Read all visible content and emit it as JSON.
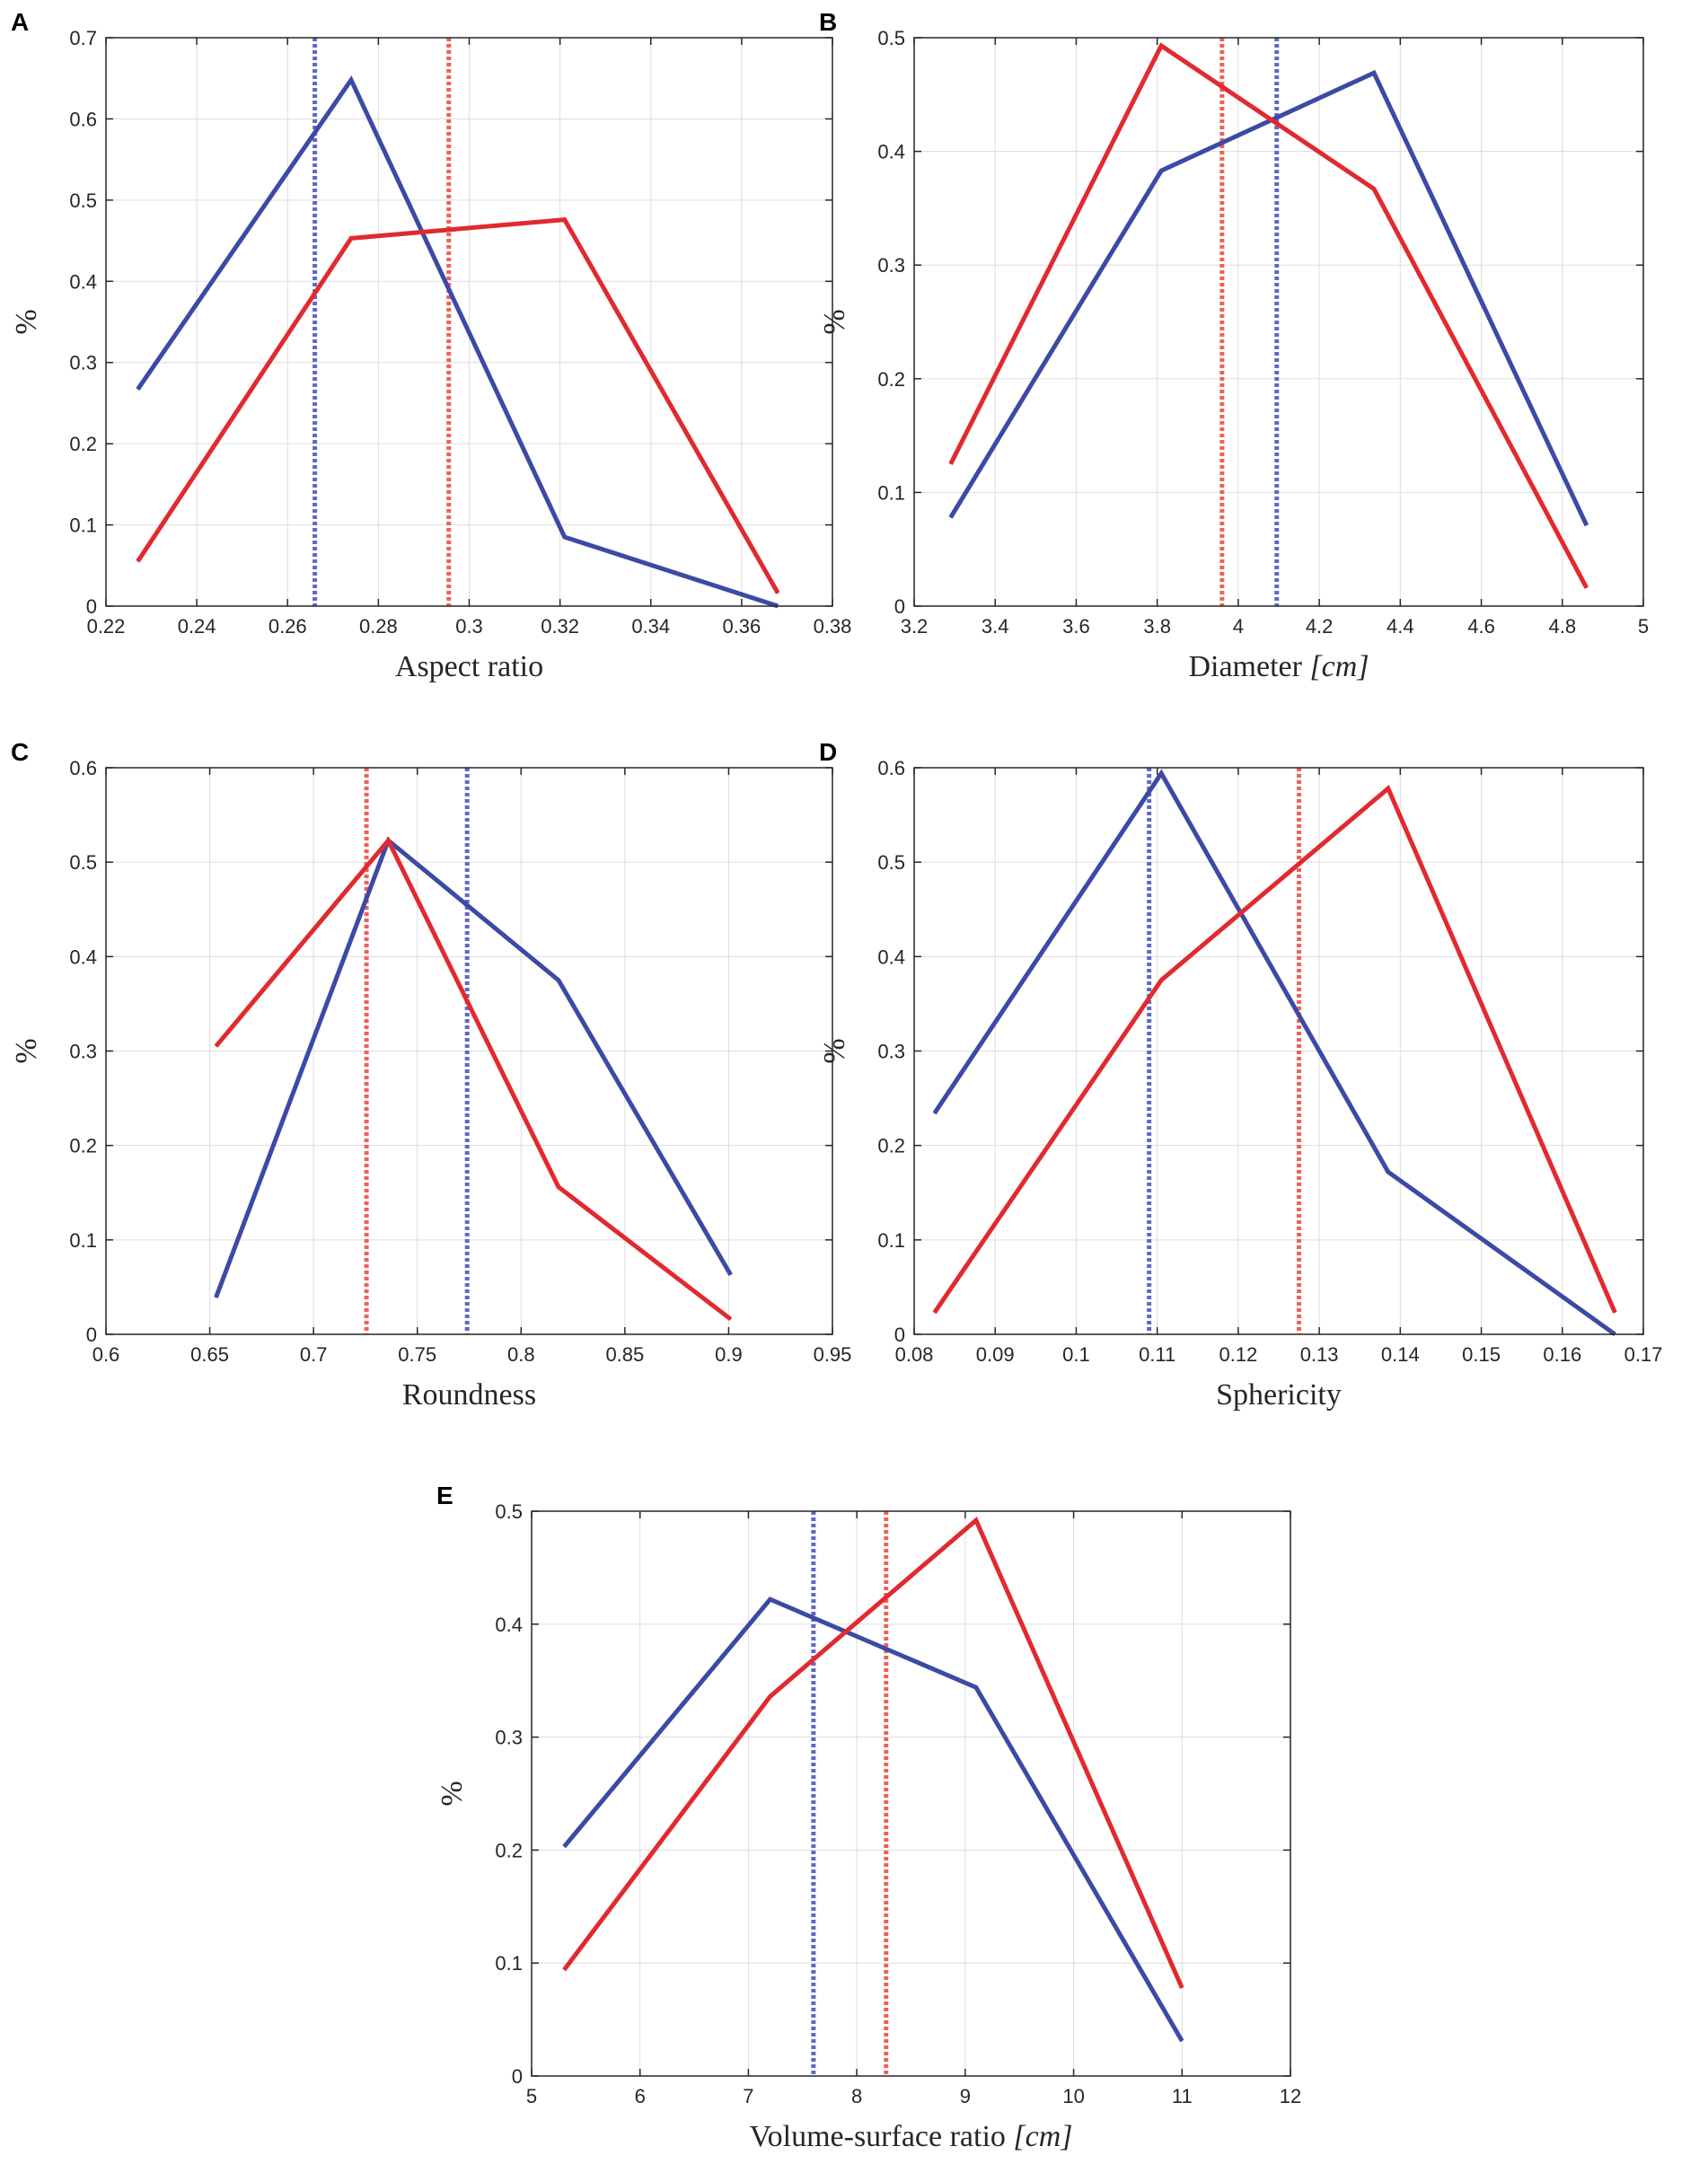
{
  "colors": {
    "blue": "#3c4aa5",
    "red": "#e12a2f",
    "blue_dotted": "#6068c8",
    "red_dotted": "#f0605a"
  },
  "chart_data": [
    {
      "id": "A",
      "panel_label": "A",
      "type": "line",
      "xlabel": "Aspect ratio",
      "ylabel": "%",
      "xlim": [
        0.22,
        0.38
      ],
      "ylim": [
        0,
        0.7
      ],
      "xticks": [
        0.22,
        0.24,
        0.26,
        0.28,
        0.3,
        0.32,
        0.34,
        0.36,
        0.38
      ],
      "xtick_labels": [
        "0.22",
        "0.24",
        "0.26",
        "0.28",
        "0.3",
        "0.32",
        "0.34",
        "0.36",
        "0.38"
      ],
      "yticks": [
        0,
        0.1,
        0.2,
        0.3,
        0.4,
        0.5,
        0.6,
        0.7
      ],
      "ytick_labels": [
        "0",
        "0.1",
        "0.2",
        "0.3",
        "0.4",
        "0.5",
        "0.6",
        "0.7"
      ],
      "grid": true,
      "series": [
        {
          "name": "blue",
          "color": "blue",
          "x": [
            0.227,
            0.274,
            0.321,
            0.368
          ],
          "y": [
            0.267,
            0.648,
            0.085,
            0.0
          ]
        },
        {
          "name": "red",
          "color": "red",
          "x": [
            0.227,
            0.274,
            0.321,
            0.368
          ],
          "y": [
            0.055,
            0.453,
            0.476,
            0.016
          ]
        }
      ],
      "vlines": [
        {
          "name": "blue-mean",
          "color": "blue_dotted",
          "x": 0.266
        },
        {
          "name": "red-mean",
          "color": "red_dotted",
          "x": 0.2955
        }
      ]
    },
    {
      "id": "B",
      "panel_label": "B",
      "type": "line",
      "xlabel": "Diameter [cm]",
      "xlabel_plain": "Diameter ",
      "xlabel_unit": "[cm]",
      "ylabel": "%",
      "xlim": [
        3.2,
        5.0
      ],
      "ylim": [
        0,
        0.5
      ],
      "xticks": [
        3.2,
        3.4,
        3.6,
        3.8,
        4.0,
        4.2,
        4.4,
        4.6,
        4.8,
        5.0
      ],
      "xtick_labels": [
        "3.2",
        "3.4",
        "3.6",
        "3.8",
        "4",
        "4.2",
        "4.4",
        "4.6",
        "4.8",
        "5"
      ],
      "yticks": [
        0,
        0.1,
        0.2,
        0.3,
        0.4,
        0.5
      ],
      "ytick_labels": [
        "0",
        "0.1",
        "0.2",
        "0.3",
        "0.4",
        "0.5"
      ],
      "grid": true,
      "series": [
        {
          "name": "blue",
          "color": "blue",
          "x": [
            3.29,
            3.81,
            4.335,
            4.86
          ],
          "y": [
            0.078,
            0.383,
            0.469,
            0.071
          ]
        },
        {
          "name": "red",
          "color": "red",
          "x": [
            3.29,
            3.81,
            4.335,
            4.86
          ],
          "y": [
            0.125,
            0.493,
            0.367,
            0.016
          ]
        }
      ],
      "vlines": [
        {
          "name": "red-mean",
          "color": "red_dotted",
          "x": 3.96
        },
        {
          "name": "blue-mean",
          "color": "blue_dotted",
          "x": 4.095
        }
      ]
    },
    {
      "id": "C",
      "panel_label": "C",
      "type": "line",
      "xlabel": "Roundness",
      "ylabel": "%",
      "xlim": [
        0.6,
        0.95
      ],
      "ylim": [
        0,
        0.6
      ],
      "xticks": [
        0.6,
        0.65,
        0.7,
        0.75,
        0.8,
        0.85,
        0.9,
        0.95
      ],
      "xtick_labels": [
        "0.6",
        "0.65",
        "0.7",
        "0.75",
        "0.8",
        "0.85",
        "0.9",
        "0.95"
      ],
      "yticks": [
        0,
        0.1,
        0.2,
        0.3,
        0.4,
        0.5,
        0.6
      ],
      "ytick_labels": [
        "0",
        "0.1",
        "0.2",
        "0.3",
        "0.4",
        "0.5",
        "0.6"
      ],
      "grid": true,
      "series": [
        {
          "name": "blue",
          "color": "blue",
          "x": [
            0.653,
            0.736,
            0.818,
            0.901
          ],
          "y": [
            0.039,
            0.523,
            0.375,
            0.063
          ]
        },
        {
          "name": "red",
          "color": "red",
          "x": [
            0.653,
            0.736,
            0.818,
            0.901
          ],
          "y": [
            0.305,
            0.523,
            0.156,
            0.016
          ]
        }
      ],
      "vlines": [
        {
          "name": "red-mean",
          "color": "red_dotted",
          "x": 0.7255
        },
        {
          "name": "blue-mean",
          "color": "blue_dotted",
          "x": 0.774
        }
      ]
    },
    {
      "id": "D",
      "panel_label": "D",
      "type": "line",
      "xlabel": "Sphericity",
      "ylabel": "%",
      "xlim": [
        0.08,
        0.17
      ],
      "ylim": [
        0,
        0.6
      ],
      "xticks": [
        0.08,
        0.09,
        0.1,
        0.11,
        0.12,
        0.13,
        0.14,
        0.15,
        0.16,
        0.17
      ],
      "xtick_labels": [
        "0.08",
        "0.09",
        "0.1",
        "0.11",
        "0.12",
        "0.13",
        "0.14",
        "0.15",
        "0.16",
        "0.17"
      ],
      "yticks": [
        0,
        0.1,
        0.2,
        0.3,
        0.4,
        0.5,
        0.6
      ],
      "ytick_labels": [
        "0",
        "0.1",
        "0.2",
        "0.3",
        "0.4",
        "0.5",
        "0.6"
      ],
      "grid": true,
      "series": [
        {
          "name": "blue",
          "color": "blue",
          "x": [
            0.0825,
            0.1105,
            0.1385,
            0.1665
          ],
          "y": [
            0.234,
            0.594,
            0.172,
            0.0
          ]
        },
        {
          "name": "red",
          "color": "red",
          "x": [
            0.0825,
            0.1105,
            0.1385,
            0.1665
          ],
          "y": [
            0.023,
            0.375,
            0.578,
            0.023
          ]
        }
      ],
      "vlines": [
        {
          "name": "blue-mean",
          "color": "blue_dotted",
          "x": 0.109
        },
        {
          "name": "red-mean",
          "color": "red_dotted",
          "x": 0.1275
        }
      ]
    },
    {
      "id": "E",
      "panel_label": "E",
      "type": "line",
      "xlabel": "Volume-surface ratio [cm]",
      "xlabel_plain": "Volume-surface ratio ",
      "xlabel_unit": "[cm]",
      "ylabel": "%",
      "xlim": [
        5,
        12
      ],
      "ylim": [
        0,
        0.5
      ],
      "xticks": [
        5,
        6,
        7,
        8,
        9,
        10,
        11,
        12
      ],
      "xtick_labels": [
        "5",
        "6",
        "7",
        "8",
        "9",
        "10",
        "11",
        "12"
      ],
      "yticks": [
        0,
        0.1,
        0.2,
        0.3,
        0.4,
        0.5
      ],
      "ytick_labels": [
        "0",
        "0.1",
        "0.2",
        "0.3",
        "0.4",
        "0.5"
      ],
      "grid": true,
      "series": [
        {
          "name": "blue",
          "color": "blue",
          "x": [
            5.3,
            7.2,
            9.1,
            11.0
          ],
          "y": [
            0.203,
            0.422,
            0.344,
            0.031
          ]
        },
        {
          "name": "red",
          "color": "red",
          "x": [
            5.3,
            7.2,
            9.1,
            11.0
          ],
          "y": [
            0.094,
            0.336,
            0.492,
            0.078
          ]
        }
      ],
      "vlines": [
        {
          "name": "blue-mean",
          "color": "blue_dotted",
          "x": 7.6
        },
        {
          "name": "red-mean",
          "color": "red_dotted",
          "x": 8.27
        }
      ]
    }
  ]
}
